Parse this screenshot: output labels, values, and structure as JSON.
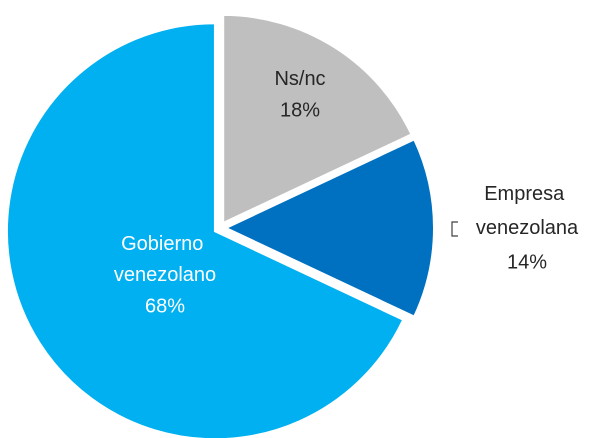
{
  "chart_data": {
    "type": "pie",
    "categories": [
      "Ns/nc",
      "Empresa venezolana",
      "Gobierno venezolano"
    ],
    "values": [
      18,
      14,
      68
    ],
    "value_labels": [
      "18%",
      "14%",
      "68%"
    ],
    "colors": [
      "#bfbfbf",
      "#0070c0",
      "#00b0f0"
    ]
  }
}
